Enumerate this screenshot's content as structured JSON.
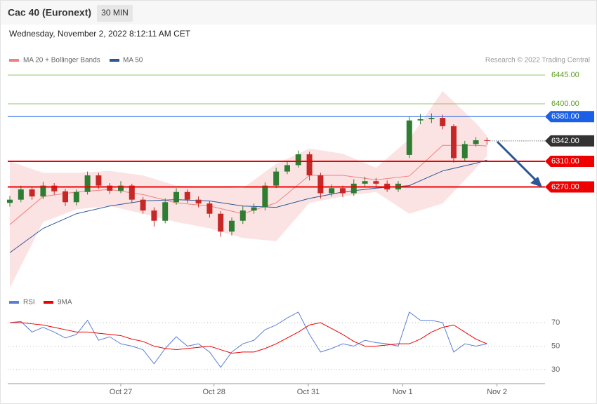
{
  "header": {
    "title": "Cac 40 (Euronext)",
    "interval": "30 MIN",
    "timestamp": "Wednesday, November 2, 2022 8:12:11 AM CET",
    "credit": "Research © 2022 Trading Central"
  },
  "chart_data": [
    {
      "type": "candlestick",
      "xlim": [
        -0.19,
        48.23
      ],
      "xticks": [
        {
          "value": 10,
          "label": "Oct 27"
        },
        {
          "value": 18.4,
          "label": "Oct 28"
        },
        {
          "value": 26.9,
          "label": "Oct 31"
        },
        {
          "value": 35.4,
          "label": "Nov 1"
        },
        {
          "value": 43.9,
          "label": "Nov 2"
        }
      ],
      "ylim": [
        6110,
        6520
      ],
      "yticks": [
        {
          "value": 6445,
          "label": "6445.00"
        },
        {
          "value": 6400,
          "label": "6400.00"
        }
      ],
      "grid_color": "#8fc46a",
      "up_color": "#2e7d32",
      "down_color": "#c62828",
      "levels": [
        {
          "value": 6380,
          "label": "6380.00",
          "color": "#1a5fe6"
        },
        {
          "value": 6342,
          "label": "6342.00",
          "color": "#333333"
        },
        {
          "value": 6310,
          "label": "6310.00",
          "color": "#ee0000"
        },
        {
          "value": 6270,
          "label": "6270.00",
          "color": "#ee0000"
        }
      ],
      "open": [
        6245,
        6250,
        6266,
        6255,
        6272,
        6263,
        6246,
        6262,
        6288,
        6272,
        6264,
        6272,
        6250,
        6233,
        6217,
        6246,
        6262,
        6250,
        6244,
        6228,
        6200,
        6217,
        6233,
        6238,
        6272,
        6294,
        6304,
        6321,
        6288,
        6260,
        6268,
        6260,
        6275,
        6279,
        6275,
        6266,
        6320,
        6374,
        6376,
        6378,
        6365,
        6315,
        6337,
        6343
      ],
      "high": [
        6256,
        6272,
        6270,
        6278,
        6276,
        6267,
        6266,
        6294,
        6292,
        6276,
        6279,
        6275,
        6254,
        6238,
        6252,
        6268,
        6266,
        6255,
        6248,
        6232,
        6222,
        6240,
        6244,
        6277,
        6300,
        6310,
        6327,
        6325,
        6292,
        6274,
        6272,
        6282,
        6286,
        6284,
        6280,
        6279,
        6380,
        6384,
        6385,
        6383,
        6368,
        6342,
        6348,
        6347
      ],
      "low": [
        6239,
        6246,
        6250,
        6251,
        6258,
        6240,
        6241,
        6258,
        6267,
        6259,
        6260,
        6245,
        6228,
        6208,
        6213,
        6242,
        6245,
        6238,
        6222,
        6192,
        6194,
        6212,
        6228,
        6233,
        6268,
        6290,
        6300,
        6280,
        6252,
        6255,
        6254,
        6256,
        6270,
        6269,
        6262,
        6262,
        6315,
        6368,
        6370,
        6360,
        6308,
        6310,
        6333,
        6336
      ],
      "close": [
        6250,
        6266,
        6255,
        6272,
        6263,
        6246,
        6262,
        6288,
        6272,
        6264,
        6272,
        6250,
        6233,
        6217,
        6246,
        6262,
        6250,
        6244,
        6228,
        6200,
        6217,
        6233,
        6238,
        6272,
        6294,
        6304,
        6321,
        6288,
        6260,
        6268,
        6260,
        6275,
        6279,
        6275,
        6266,
        6275,
        6374,
        6376,
        6378,
        6365,
        6315,
        6337,
        6343,
        6342
      ],
      "bands": {
        "name": "MA 20 + Bollinger Bands",
        "color": "#f08080",
        "x": [
          0,
          3,
          6,
          9,
          12,
          15,
          18,
          21,
          24,
          27,
          30,
          33,
          36,
          39,
          42,
          43
        ],
        "upper": [
          6310,
          6292,
          6292,
          6295,
          6288,
          6272,
          6270,
          6268,
          6306,
          6330,
          6322,
          6300,
          6345,
          6420,
          6370,
          6350
        ],
        "middle": [
          6211,
          6255,
          6262,
          6266,
          6258,
          6245,
          6240,
          6228,
          6245,
          6288,
          6288,
          6281,
          6287,
          6335,
          6335,
          6334
        ],
        "lower": [
          6112,
          6215,
          6235,
          6240,
          6228,
          6215,
          6205,
          6190,
          6185,
          6245,
          6255,
          6262,
          6228,
          6244,
          6299,
          6318
        ]
      },
      "series": [
        {
          "name": "MA 50",
          "color": "#2b5797",
          "x": [
            0,
            3,
            6,
            9,
            12,
            15,
            18,
            21,
            24,
            27,
            30,
            33,
            36,
            39,
            42,
            43
          ],
          "values": [
            6167,
            6205,
            6228,
            6240,
            6248,
            6250,
            6248,
            6240,
            6238,
            6252,
            6262,
            6268,
            6272,
            6295,
            6307,
            6312
          ]
        }
      ]
    },
    {
      "type": "line",
      "xlim": [
        -0.19,
        48.23
      ],
      "ylim": [
        20,
        82
      ],
      "yticks": [
        30,
        50,
        70
      ],
      "series": [
        {
          "name": "RSI",
          "color": "#5b7fd6",
          "values": [
            70,
            71,
            62,
            66,
            62,
            57,
            60,
            72,
            55,
            58,
            52,
            50,
            47,
            35,
            48,
            58,
            50,
            52,
            45,
            32,
            45,
            52,
            55,
            64,
            68,
            74,
            79,
            60,
            45,
            48,
            52,
            50,
            55,
            53,
            52,
            50,
            79,
            72,
            72,
            70,
            45,
            52,
            50,
            52
          ]
        },
        {
          "name": "9MA",
          "color": "#ee0000",
          "values": [
            70,
            70,
            69,
            68,
            66,
            64,
            62,
            62,
            61,
            60,
            59,
            56,
            54,
            50,
            48,
            47,
            48,
            49,
            50,
            47,
            44,
            45,
            45,
            48,
            52,
            57,
            62,
            68,
            70,
            65,
            60,
            54,
            50,
            50,
            51,
            52,
            52,
            56,
            62,
            66,
            68,
            62,
            56,
            52
          ]
        }
      ]
    }
  ]
}
